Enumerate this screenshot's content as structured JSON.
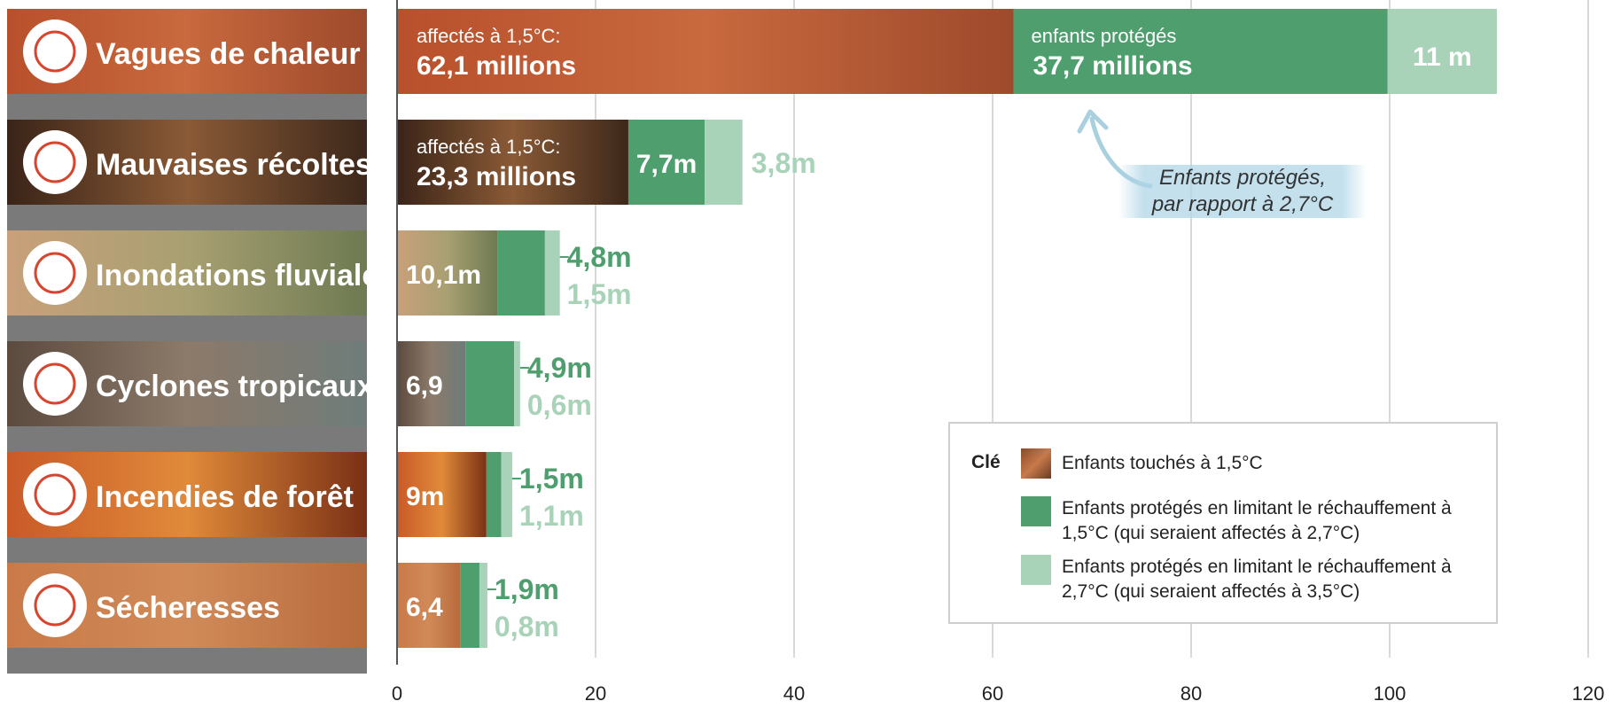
{
  "chart_data": {
    "type": "bar",
    "orientation": "horizontal",
    "stacked": true,
    "categories": [
      "Vagues de chaleur",
      "Mauvaises récoltes",
      "Inondations fluviales",
      "Cyclones tropicaux",
      "Incendies de forêt",
      "Sécheresses"
    ],
    "category_icons": [
      "sun-heatwave-icon",
      "wheat-crop-icon",
      "flood-house-icon",
      "cyclone-wave-icon",
      "wildfire-trees-icon",
      "drought-plant-icon"
    ],
    "series": [
      {
        "name": "Enfants touchés à 1,5°C",
        "values": [
          62.1,
          23.3,
          10.1,
          6.9,
          9.0,
          6.4
        ],
        "color": "#b8683f"
      },
      {
        "name": "Enfants protégés en limitant le réchauffement à 1,5°C (qui seraient affectés à 2,7°C)",
        "values": [
          37.7,
          7.7,
          4.8,
          4.9,
          1.5,
          1.9
        ],
        "color": "#4e9e6e"
      },
      {
        "name": "Enfants protégés en limitant le réchauffement à 2,7°C (qui seraient affectés à 3,5°C)",
        "values": [
          11.0,
          3.8,
          1.5,
          0.6,
          1.1,
          0.8
        ],
        "color": "#a9d3b9"
      }
    ],
    "data_labels": {
      "affected": [
        {
          "line1": "affectés à  1,5°C:",
          "line2": "62,1 millions"
        },
        {
          "line1": "affectés à  1,5°C:",
          "line2": "23,3 millions"
        },
        {
          "line1": "",
          "line2": "10,1m"
        },
        {
          "line1": "",
          "line2": "6,9"
        },
        {
          "line1": "",
          "line2": "9m"
        },
        {
          "line1": "",
          "line2": "6,4"
        }
      ],
      "protected_15": [
        {
          "line1": "enfants protégés",
          "line2": "37,7 millions"
        },
        {
          "line1": "",
          "line2": "7,7m"
        },
        {
          "line1": "",
          "line2": "4,8m"
        },
        {
          "line1": "",
          "line2": "4,9m"
        },
        {
          "line1": "",
          "line2": "1,5m"
        },
        {
          "line1": "",
          "line2": "1,9m"
        }
      ],
      "protected_27": [
        "11 m",
        "3,8m",
        "1,5m",
        "0,6m",
        "1,1m",
        "0,8m"
      ]
    },
    "xlim": [
      0,
      120
    ],
    "xticks": [
      "0",
      "20",
      "40",
      "60",
      "80",
      "100",
      "120"
    ],
    "grid": true,
    "legend": {
      "position": "bottom-right",
      "title": "Clé",
      "items": [
        "Enfants touchés à 1,5°C",
        "Enfants protégés en limitant le réchauffement à 1,5°C (qui seraient affectés à 2,7°C)",
        "Enfants protégés en limitant le réchauffement à 2,7°C (qui seraient affectés à 3,5°C)"
      ]
    },
    "annotation": {
      "line1": "Enfants protégés,",
      "line2": "par rapport à 2,7°C"
    }
  }
}
